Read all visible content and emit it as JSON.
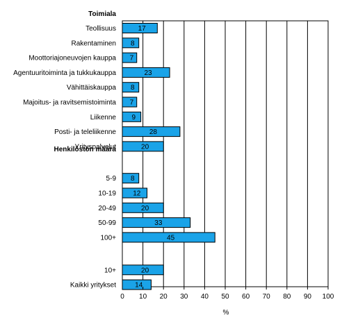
{
  "chart_data": {
    "type": "bar",
    "orientation": "horizontal",
    "xlabel": "%",
    "xlim": [
      0,
      100
    ],
    "xticks": [
      0,
      10,
      20,
      30,
      40,
      50,
      60,
      70,
      80,
      90,
      100
    ],
    "grid": "vertical lines",
    "bar_color": "#1aa3e8",
    "bar_border_color": "#000000",
    "groups": [
      {
        "name": "Toimiala",
        "categories": [
          "Teollisuus",
          "Rakentaminen",
          "Moottoriajoneuvojen kauppa",
          "Agentuuritoiminta ja tukkukauppa",
          "Vähittäiskauppa",
          "Majoitus- ja ravitsemistoiminta",
          "Liikenne",
          "Posti- ja teleliikenne",
          "Yrityspalvelut"
        ],
        "values": [
          17,
          8,
          7,
          23,
          8,
          7,
          9,
          28,
          20
        ]
      },
      {
        "name": "Henkilöstön määrä",
        "categories": [
          "5-9",
          "10-19",
          "20-49",
          "50-99",
          "100+"
        ],
        "values": [
          8,
          12,
          20,
          33,
          45
        ]
      },
      {
        "name": "",
        "categories": [
          "10+",
          "Kaikki yritykset"
        ],
        "values": [
          20,
          14
        ]
      }
    ]
  }
}
